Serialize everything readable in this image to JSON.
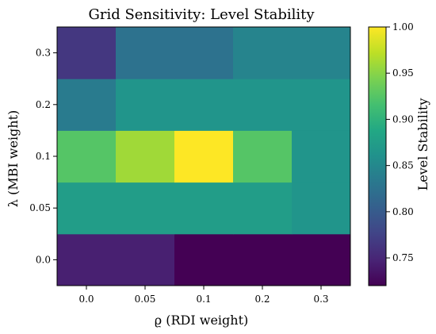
{
  "chart_data": {
    "type": "heatmap",
    "title": "Grid Sensitivity: Level Stability",
    "xlabel": "ϱ (RDI weight)",
    "ylabel": "λ (MBI weight)",
    "x_categories": [
      "0.0",
      "0.05",
      "0.1",
      "0.2",
      "0.3"
    ],
    "y_categories": [
      "0.0",
      "0.05",
      "0.1",
      "0.2",
      "0.3"
    ],
    "values": [
      [
        0.745,
        0.745,
        0.72,
        0.72,
        0.72
      ],
      [
        0.875,
        0.875,
        0.875,
        0.875,
        0.865
      ],
      [
        0.925,
        0.96,
        1.0,
        0.925,
        0.865
      ],
      [
        0.835,
        0.865,
        0.865,
        0.865,
        0.865
      ],
      [
        0.765,
        0.825,
        0.825,
        0.845,
        0.845
      ]
    ],
    "colorbar": {
      "label": "Level Stability",
      "range": [
        0.72,
        1.0
      ],
      "ticks": [
        "0.75",
        "0.80",
        "0.85",
        "0.90",
        "0.95",
        "1.00"
      ],
      "colormap": "viridis"
    }
  }
}
